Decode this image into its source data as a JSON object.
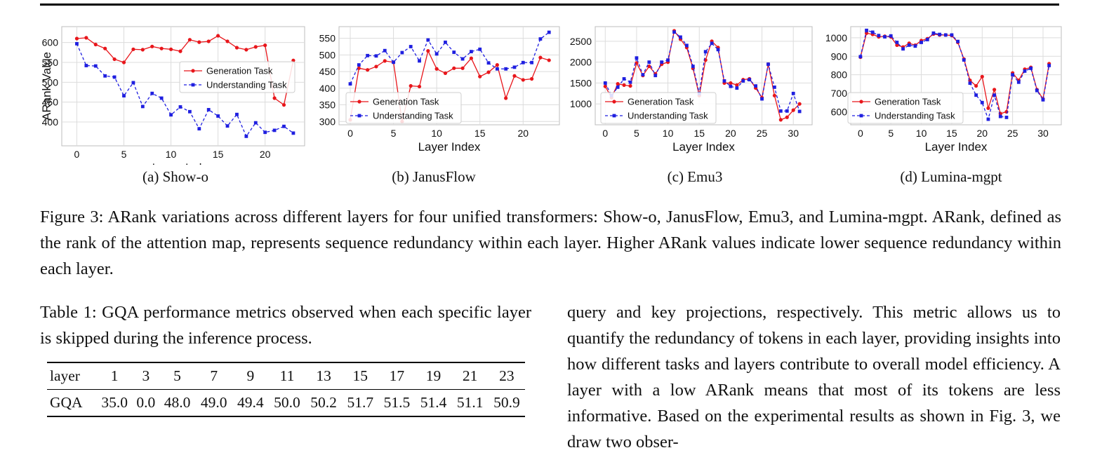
{
  "charts_common": {
    "legend_generation": "Generation Task",
    "legend_understanding": "Understanding Task",
    "xlabel": "Layer Index",
    "ylabel": "ARank Value"
  },
  "subcaptions": [
    "(a) Show-o",
    "(b) JanusFlow",
    "(c) Emu3",
    "(d) Lumina-mgpt"
  ],
  "figure_caption": "Figure 3: ARank variations across different layers for four unified transformers: Show-o, JanusFlow, Emu3, and Lumina-mgpt. ARank, defined as the rank of the attention map, represents sequence redundancy within each layer. Higher ARank values indicate lower sequence redundancy within each layer.",
  "table_caption": "Table 1: GQA performance metrics observed when each specific layer is skipped during the inference process.",
  "table": {
    "header": [
      "layer",
      "1",
      "3",
      "5",
      "7",
      "9",
      "11",
      "13",
      "15",
      "17",
      "19",
      "21",
      "23"
    ],
    "row": [
      "GQA",
      "35.0",
      "0.0",
      "48.0",
      "49.0",
      "49.4",
      "50.0",
      "50.2",
      "51.7",
      "51.5",
      "51.4",
      "51.1",
      "50.9"
    ]
  },
  "body_text": "query and key projections, respectively. This metric allows us to quantify the redundancy of tokens in each layer, providing insights into how different tasks and layers contribute to overall model efficiency. A layer with a low ARank means that most of its tokens are less informative. Based on the experimental results as shown in Fig. 3, we draw two obser-",
  "colors": {
    "generation": "#e8161b",
    "understanding": "#1f1fe0",
    "grid": "#dcdcdc"
  },
  "chart_data": [
    {
      "type": "line",
      "title": "",
      "xlabel": "Layer Index",
      "ylabel": "ARank Value",
      "xlim": [
        -1.6,
        24.2
      ],
      "ylim": [
        340,
        640
      ],
      "xticks": [
        0,
        5,
        10,
        15,
        20
      ],
      "yticks": [
        400,
        450,
        500,
        550,
        600
      ],
      "grid": true,
      "legend_position": "center-right",
      "x": [
        0,
        1,
        2,
        3,
        4,
        5,
        6,
        7,
        8,
        9,
        10,
        11,
        12,
        13,
        14,
        15,
        16,
        17,
        18,
        19,
        20,
        21,
        22,
        23
      ],
      "series": [
        {
          "name": "Generation Task",
          "values": [
            610,
            612,
            595,
            585,
            558,
            550,
            583,
            582,
            590,
            585,
            583,
            578,
            607,
            601,
            603,
            617,
            603,
            587,
            582,
            589,
            593,
            460,
            443,
            555
          ]
        },
        {
          "name": "Understanding Task",
          "values": [
            597,
            542,
            541,
            516,
            513,
            466,
            499,
            439,
            472,
            460,
            418,
            438,
            426,
            383,
            431,
            415,
            390,
            419,
            364,
            398,
            374,
            379,
            389,
            372
          ]
        }
      ]
    },
    {
      "type": "line",
      "title": "",
      "xlabel": "Layer Index",
      "ylabel": "",
      "xlim": [
        -1.3,
        24.2
      ],
      "ylim": [
        290,
        585
      ],
      "xticks": [
        0,
        5,
        10,
        15,
        20
      ],
      "yticks": [
        300,
        350,
        400,
        450,
        500,
        550
      ],
      "grid": true,
      "legend_position": "lower-left",
      "x": [
        0,
        1,
        2,
        3,
        4,
        5,
        6,
        7,
        8,
        9,
        10,
        11,
        12,
        13,
        14,
        15,
        16,
        17,
        18,
        19,
        20,
        21,
        22,
        23
      ],
      "series": [
        {
          "name": "Generation Task",
          "values": [
            305,
            460,
            455,
            465,
            482,
            478,
            300,
            407,
            405,
            512,
            458,
            445,
            460,
            460,
            490,
            435,
            448,
            470,
            370,
            437,
            425,
            428,
            492,
            484
          ]
        },
        {
          "name": "Understanding Task",
          "values": [
            413,
            470,
            498,
            497,
            513,
            478,
            507,
            525,
            482,
            545,
            503,
            538,
            508,
            488,
            510,
            517,
            476,
            458,
            458,
            463,
            477,
            477,
            548,
            568
          ]
        }
      ]
    },
    {
      "type": "line",
      "title": "",
      "xlabel": "Layer Index",
      "ylabel": "",
      "xlim": [
        -1.6,
        33.0
      ],
      "ylim": [
        500,
        2850
      ],
      "xticks": [
        0,
        5,
        10,
        15,
        20,
        25,
        30
      ],
      "yticks": [
        1000,
        1500,
        2000,
        2500
      ],
      "grid": true,
      "legend_position": "lower-left",
      "x": [
        0,
        1,
        2,
        3,
        4,
        5,
        6,
        7,
        8,
        9,
        10,
        11,
        12,
        13,
        14,
        15,
        16,
        17,
        18,
        19,
        20,
        21,
        22,
        23,
        24,
        25,
        26,
        27,
        28,
        29,
        30,
        31
      ],
      "series": [
        {
          "name": "Generation Task",
          "values": [
            1420,
            1150,
            1480,
            1450,
            1430,
            1980,
            1680,
            1900,
            1720,
            1950,
            2000,
            2750,
            2550,
            2350,
            1850,
            1200,
            2050,
            2500,
            2350,
            1500,
            1500,
            1450,
            1580,
            1600,
            1380,
            1150,
            1950,
            1200,
            620,
            680,
            850,
            1000
          ]
        },
        {
          "name": "Understanding Task",
          "values": [
            1500,
            1200,
            1400,
            1600,
            1520,
            2100,
            1700,
            2000,
            1680,
            2000,
            2050,
            2720,
            2600,
            2400,
            1900,
            1250,
            2250,
            2450,
            2300,
            1550,
            1420,
            1380,
            1550,
            1580,
            1430,
            1120,
            1950,
            1400,
            830,
            830,
            1250,
            820
          ]
        }
      ]
    },
    {
      "type": "line",
      "title": "",
      "xlabel": "Layer Index",
      "ylabel": "",
      "xlim": [
        -1.6,
        33.0
      ],
      "ylim": [
        530,
        1060
      ],
      "xticks": [
        0,
        5,
        10,
        15,
        20,
        25,
        30
      ],
      "yticks": [
        600,
        700,
        800,
        900,
        1000
      ],
      "grid": true,
      "legend_position": "lower-left",
      "x": [
        0,
        1,
        2,
        3,
        4,
        5,
        6,
        7,
        8,
        9,
        10,
        11,
        12,
        13,
        14,
        15,
        16,
        17,
        18,
        19,
        20,
        21,
        22,
        23,
        24,
        25,
        26,
        27,
        28,
        29,
        30,
        31
      ],
      "series": [
        {
          "name": "Generation Task",
          "values": [
            895,
            1025,
            1018,
            1005,
            1008,
            1005,
            960,
            950,
            970,
            960,
            985,
            995,
            1020,
            1015,
            1015,
            1012,
            975,
            885,
            770,
            740,
            790,
            620,
            720,
            590,
            600,
            810,
            770,
            830,
            840,
            720,
            670,
            860
          ]
        },
        {
          "name": "Understanding Task",
          "values": [
            898,
            1040,
            1030,
            1012,
            1005,
            1010,
            975,
            940,
            960,
            955,
            975,
            990,
            1025,
            1018,
            1015,
            1015,
            980,
            880,
            755,
            690,
            650,
            560,
            690,
            575,
            570,
            800,
            760,
            820,
            835,
            715,
            665,
            850
          ]
        }
      ]
    }
  ]
}
